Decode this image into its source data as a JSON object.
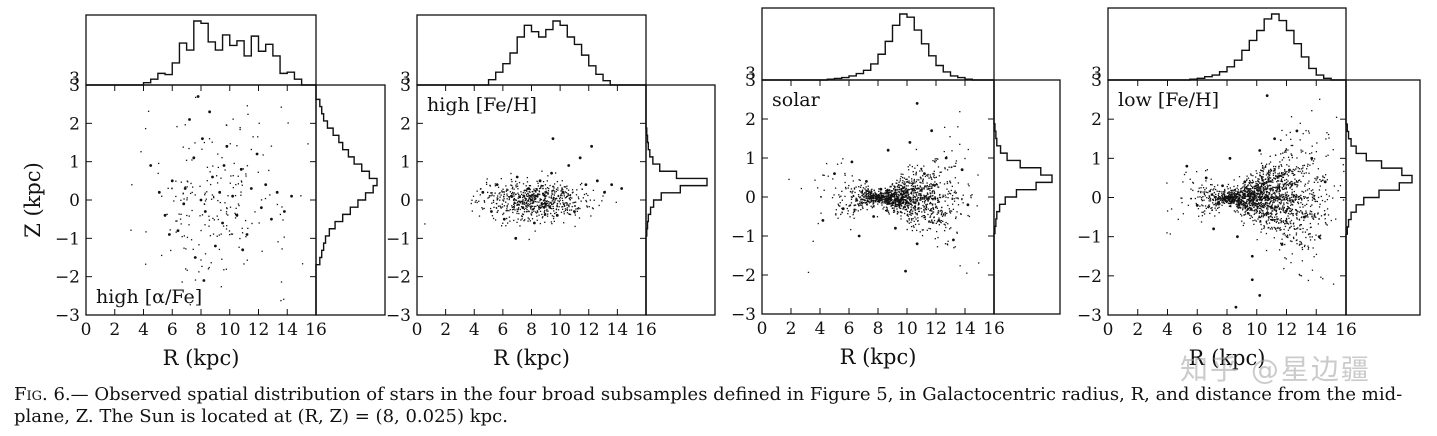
{
  "chart_data": [
    {
      "type": "scatter",
      "label": "high [α/Fe]",
      "label_position": "bottom-left",
      "xlabel": "R (kpc)",
      "ylabel": "Z (kpc)",
      "xlim": [
        0,
        16
      ],
      "ylim": [
        -3,
        3
      ],
      "xticks": [
        "0",
        "2",
        "4",
        "6",
        "8",
        "10",
        "12",
        "14",
        "16"
      ],
      "yticks": [
        "−3",
        "−2",
        "−1",
        "0",
        "1",
        "2",
        "3"
      ],
      "points": [
        [
          4.5,
          0.9
        ],
        [
          5.1,
          0.2
        ],
        [
          5.5,
          -0.4
        ],
        [
          6.0,
          0.5
        ],
        [
          6.4,
          -0.8
        ],
        [
          6.9,
          0.3
        ],
        [
          7.2,
          2.1
        ],
        [
          7.5,
          1.1
        ],
        [
          7.8,
          2.7
        ],
        [
          8.0,
          0.0
        ],
        [
          8.1,
          1.6
        ],
        [
          8.3,
          -0.3
        ],
        [
          8.6,
          2.3
        ],
        [
          8.8,
          0.6
        ],
        [
          9.0,
          -1.2
        ],
        [
          9.3,
          0.2
        ],
        [
          9.5,
          -0.6
        ],
        [
          9.8,
          1.4
        ],
        [
          10.2,
          0.1
        ],
        [
          10.5,
          -0.4
        ],
        [
          10.8,
          0.8
        ],
        [
          11.2,
          -0.9
        ],
        [
          11.5,
          0.3
        ],
        [
          11.9,
          1.2
        ],
        [
          12.2,
          -0.2
        ],
        [
          12.5,
          0.4
        ],
        [
          12.9,
          -0.5
        ],
        [
          13.3,
          0.2
        ],
        [
          13.8,
          -0.3
        ],
        [
          14.3,
          0.1
        ],
        [
          8.2,
          -2.1
        ],
        [
          7.6,
          -1.5
        ],
        [
          6.8,
          -0.1
        ],
        [
          5.8,
          -0.9
        ],
        [
          9.6,
          0.9
        ],
        [
          10.9,
          -1.3
        ]
      ],
      "hist_R": [
        0,
        0,
        0,
        0,
        0,
        0,
        0,
        0,
        2,
        5,
        10,
        9,
        19,
        36,
        30,
        55,
        53,
        37,
        30,
        43,
        34,
        38,
        25,
        42,
        29,
        35,
        25,
        10,
        11,
        5,
        0,
        0
      ],
      "hist_Z": [
        0,
        0,
        0,
        0,
        0,
        0,
        0,
        2,
        3,
        4,
        5,
        7,
        10,
        14,
        18,
        22,
        26,
        30,
        32,
        28,
        24,
        20,
        17,
        14,
        12,
        9,
        6,
        4,
        3,
        2,
        0,
        0
      ]
    },
    {
      "type": "scatter",
      "label": "high [Fe/H]",
      "label_position": "top-left",
      "xlabel": "R (kpc)",
      "ylabel": "",
      "xlim": [
        0,
        16
      ],
      "ylim": [
        -3,
        3
      ],
      "xticks": [
        "0",
        "2",
        "4",
        "6",
        "8",
        "10",
        "12",
        "14",
        "16"
      ],
      "yticks": [
        "−3",
        "−2",
        "−1",
        "0",
        "1",
        "2",
        "3"
      ],
      "points": [
        [
          4.6,
          0.2
        ],
        [
          5.2,
          -0.3
        ],
        [
          5.6,
          0.4
        ],
        [
          6.1,
          -0.5
        ],
        [
          6.6,
          0.1
        ],
        [
          7.0,
          0.6
        ],
        [
          7.4,
          -0.2
        ],
        [
          7.8,
          0.3
        ],
        [
          8.2,
          -0.6
        ],
        [
          8.6,
          0.5
        ],
        [
          9.0,
          -0.1
        ],
        [
          9.4,
          0.7
        ],
        [
          9.8,
          -0.4
        ],
        [
          10.2,
          0.2
        ],
        [
          10.6,
          0.9
        ],
        [
          11.0,
          -0.3
        ],
        [
          11.4,
          1.1
        ],
        [
          11.8,
          0.4
        ],
        [
          12.2,
          1.4
        ],
        [
          12.6,
          0.5
        ],
        [
          13.1,
          0.2
        ],
        [
          13.6,
          0.4
        ],
        [
          14.3,
          0.3
        ],
        [
          9.5,
          1.6
        ],
        [
          6.9,
          -1.0
        ],
        [
          8.0,
          0.0
        ]
      ],
      "hist_R": [
        0,
        0,
        0,
        0,
        0,
        0,
        0,
        0,
        0,
        0,
        5,
        12,
        20,
        30,
        45,
        56,
        50,
        45,
        52,
        60,
        56,
        45,
        38,
        28,
        18,
        10,
        4,
        0,
        0,
        0,
        0,
        0
      ],
      "hist_Z": [
        0,
        0,
        0,
        0,
        0,
        0,
        0,
        0,
        0,
        0,
        0,
        1,
        2,
        3,
        6,
        10,
        20,
        45,
        80,
        40,
        18,
        9,
        5,
        3,
        2,
        1,
        0,
        0,
        0,
        0,
        0,
        0
      ]
    },
    {
      "type": "scatter",
      "label": "solar",
      "label_position": "top-left",
      "xlabel": "R (kpc)",
      "ylabel": "",
      "xlim": [
        0,
        16
      ],
      "ylim": [
        -3,
        3
      ],
      "xticks": [
        "0",
        "2",
        "4",
        "6",
        "8",
        "10",
        "12",
        "14",
        "16"
      ],
      "yticks": [
        "−3",
        "−2",
        "−1",
        "0",
        "1",
        "2",
        "3"
      ],
      "points": [
        [
          4.2,
          -0.6
        ],
        [
          5.0,
          0.6
        ],
        [
          5.6,
          -0.3
        ],
        [
          6.2,
          0.9
        ],
        [
          6.7,
          -1.0
        ],
        [
          7.2,
          0.4
        ],
        [
          7.7,
          -0.5
        ],
        [
          8.2,
          0.2
        ],
        [
          8.7,
          1.2
        ],
        [
          9.2,
          -0.8
        ],
        [
          9.7,
          0.0
        ],
        [
          10.2,
          1.4
        ],
        [
          10.7,
          -1.2
        ],
        [
          11.2,
          0.6
        ],
        [
          11.7,
          1.7
        ],
        [
          12.2,
          -0.6
        ],
        [
          12.7,
          1.0
        ],
        [
          13.2,
          -1.1
        ],
        [
          13.8,
          0.7
        ],
        [
          14.2,
          -0.2
        ],
        [
          9.9,
          -1.9
        ],
        [
          10.7,
          2.4
        ],
        [
          8.0,
          0.0
        ]
      ],
      "hist_R": [
        0,
        0,
        0,
        0,
        0,
        0,
        0,
        0,
        0,
        1,
        2,
        3,
        5,
        8,
        12,
        20,
        32,
        48,
        68,
        82,
        78,
        62,
        45,
        30,
        18,
        10,
        5,
        3,
        1,
        0,
        0,
        0
      ],
      "hist_Z": [
        0,
        0,
        0,
        0,
        0,
        0,
        0,
        0,
        0,
        0,
        0,
        1,
        2,
        3,
        6,
        12,
        24,
        45,
        62,
        50,
        28,
        14,
        7,
        3,
        2,
        1,
        0,
        0,
        0,
        0,
        0,
        0
      ]
    },
    {
      "type": "scatter",
      "label": "low [Fe/H]",
      "label_position": "top-left",
      "xlabel": "R (kpc)",
      "ylabel": "",
      "xlim": [
        0,
        16
      ],
      "ylim": [
        -3,
        3
      ],
      "xticks": [
        "0",
        "2",
        "4",
        "6",
        "8",
        "10",
        "12",
        "14",
        "16"
      ],
      "yticks": [
        "−3",
        "−2",
        "−1",
        "0",
        "1",
        "2",
        "3"
      ],
      "points": [
        [
          5.3,
          0.8
        ],
        [
          6.0,
          -0.2
        ],
        [
          6.6,
          0.5
        ],
        [
          7.1,
          -0.8
        ],
        [
          7.7,
          0.3
        ],
        [
          8.2,
          1.0
        ],
        [
          8.7,
          -1.0
        ],
        [
          9.2,
          0.4
        ],
        [
          9.7,
          -1.5
        ],
        [
          10.2,
          1.2
        ],
        [
          10.7,
          -0.4
        ],
        [
          11.2,
          1.5
        ],
        [
          11.7,
          -1.2
        ],
        [
          12.2,
          0.7
        ],
        [
          12.7,
          1.7
        ],
        [
          13.2,
          -0.5
        ],
        [
          13.7,
          1.0
        ],
        [
          14.2,
          -1.0
        ],
        [
          14.6,
          0.4
        ],
        [
          9.7,
          -2.1
        ],
        [
          10.2,
          -2.5
        ],
        [
          10.7,
          2.6
        ],
        [
          8.6,
          -2.8
        ],
        [
          8.0,
          0.0
        ]
      ],
      "hist_R": [
        0,
        0,
        0,
        0,
        0,
        0,
        0,
        0,
        0,
        0,
        0,
        1,
        2,
        4,
        6,
        10,
        16,
        24,
        36,
        48,
        60,
        74,
        80,
        72,
        60,
        44,
        28,
        14,
        6,
        2,
        0,
        0
      ],
      "hist_Z": [
        0,
        0,
        0,
        0,
        0,
        0,
        0,
        0,
        0,
        0,
        0,
        1,
        2,
        4,
        8,
        14,
        26,
        42,
        52,
        44,
        28,
        16,
        8,
        4,
        2,
        1,
        0,
        0,
        0,
        0,
        0,
        0
      ]
    }
  ],
  "watermark": "知乎 @星边疆",
  "caption": {
    "fig_label": "Fig. 6.",
    "text": "— Observed spatial distribution of stars in the four broad subsamples defined in Figure 5, in Galactocentric radius, R, and distance from the mid-plane, Z. The Sun is located at (R, Z) = (8, 0.025) kpc."
  }
}
